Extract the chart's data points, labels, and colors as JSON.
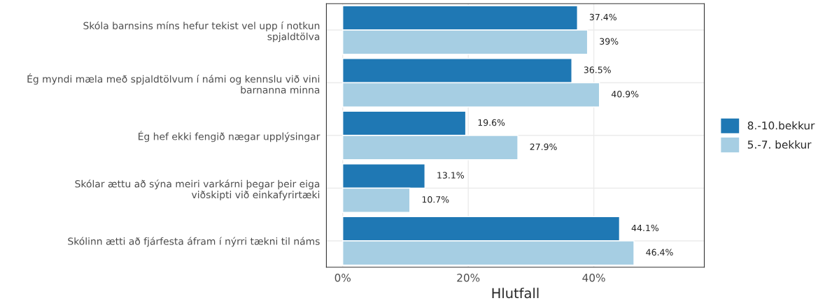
{
  "chart_data": {
    "type": "bar",
    "orientation": "horizontal",
    "xlabel": "Hlutfall",
    "categories": [
      "Skóla barnsins míns hefur tekist vel upp í notkun\nspjaldtölva",
      "Ég myndi mæla með spjaldtölvum í námi og kennslu við vini\nbarnanna minna",
      "Ég hef ekki fengið nægar upplýsingar",
      "Skólar ættu að sýna meiri varkárni þegar þeir eiga\nviðskipti við einkafyrirtæki",
      "Skólinn ætti að fjárfesta áfram í nýrri tækni til náms"
    ],
    "series": [
      {
        "name": "8.-10.bekkur",
        "color": "#1f78b4",
        "values": [
          37.4,
          36.5,
          19.6,
          13.1,
          44.1
        ],
        "value_labels": [
          "37.4%",
          "36.5%",
          "19.6%",
          "13.1%",
          "44.1%"
        ]
      },
      {
        "name": "5.-7. bekkur",
        "color": "#a6cee3",
        "values": [
          39,
          40.9,
          27.9,
          10.7,
          46.4
        ],
        "value_labels": [
          "39%",
          "40.9%",
          "27.9%",
          "10.7%",
          "46.4%"
        ]
      }
    ],
    "xlim": [
      -2.6,
      57.6
    ],
    "xticks": [
      {
        "value": 0,
        "label": "0%"
      },
      {
        "value": 20,
        "label": "20%"
      },
      {
        "value": 40,
        "label": "40%"
      }
    ],
    "grid": true,
    "legend": "right"
  }
}
